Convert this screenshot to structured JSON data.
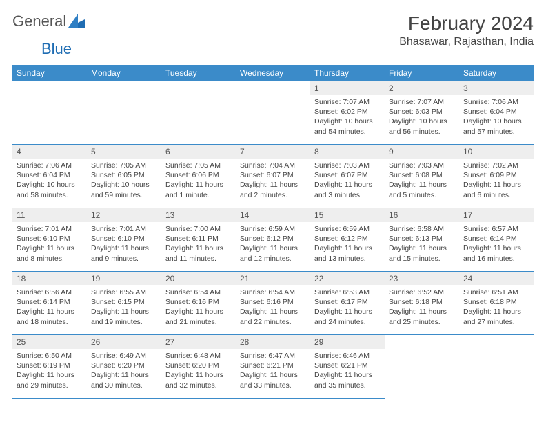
{
  "brand": {
    "text_a": "General",
    "text_b": "Blue",
    "color_a": "#666666",
    "color_b": "#1f6db3"
  },
  "title": "February 2024",
  "location": "Bhasawar, Rajasthan, India",
  "header_bg": "#3b8bc9",
  "weekdays": [
    "Sunday",
    "Monday",
    "Tuesday",
    "Wednesday",
    "Thursday",
    "Friday",
    "Saturday"
  ],
  "days": [
    {
      "n": 1,
      "sr": "7:07 AM",
      "ss": "6:02 PM",
      "dl": "10 hours and 54 minutes."
    },
    {
      "n": 2,
      "sr": "7:07 AM",
      "ss": "6:03 PM",
      "dl": "10 hours and 56 minutes."
    },
    {
      "n": 3,
      "sr": "7:06 AM",
      "ss": "6:04 PM",
      "dl": "10 hours and 57 minutes."
    },
    {
      "n": 4,
      "sr": "7:06 AM",
      "ss": "6:04 PM",
      "dl": "10 hours and 58 minutes."
    },
    {
      "n": 5,
      "sr": "7:05 AM",
      "ss": "6:05 PM",
      "dl": "10 hours and 59 minutes."
    },
    {
      "n": 6,
      "sr": "7:05 AM",
      "ss": "6:06 PM",
      "dl": "11 hours and 1 minute."
    },
    {
      "n": 7,
      "sr": "7:04 AM",
      "ss": "6:07 PM",
      "dl": "11 hours and 2 minutes."
    },
    {
      "n": 8,
      "sr": "7:03 AM",
      "ss": "6:07 PM",
      "dl": "11 hours and 3 minutes."
    },
    {
      "n": 9,
      "sr": "7:03 AM",
      "ss": "6:08 PM",
      "dl": "11 hours and 5 minutes."
    },
    {
      "n": 10,
      "sr": "7:02 AM",
      "ss": "6:09 PM",
      "dl": "11 hours and 6 minutes."
    },
    {
      "n": 11,
      "sr": "7:01 AM",
      "ss": "6:10 PM",
      "dl": "11 hours and 8 minutes."
    },
    {
      "n": 12,
      "sr": "7:01 AM",
      "ss": "6:10 PM",
      "dl": "11 hours and 9 minutes."
    },
    {
      "n": 13,
      "sr": "7:00 AM",
      "ss": "6:11 PM",
      "dl": "11 hours and 11 minutes."
    },
    {
      "n": 14,
      "sr": "6:59 AM",
      "ss": "6:12 PM",
      "dl": "11 hours and 12 minutes."
    },
    {
      "n": 15,
      "sr": "6:59 AM",
      "ss": "6:12 PM",
      "dl": "11 hours and 13 minutes."
    },
    {
      "n": 16,
      "sr": "6:58 AM",
      "ss": "6:13 PM",
      "dl": "11 hours and 15 minutes."
    },
    {
      "n": 17,
      "sr": "6:57 AM",
      "ss": "6:14 PM",
      "dl": "11 hours and 16 minutes."
    },
    {
      "n": 18,
      "sr": "6:56 AM",
      "ss": "6:14 PM",
      "dl": "11 hours and 18 minutes."
    },
    {
      "n": 19,
      "sr": "6:55 AM",
      "ss": "6:15 PM",
      "dl": "11 hours and 19 minutes."
    },
    {
      "n": 20,
      "sr": "6:54 AM",
      "ss": "6:16 PM",
      "dl": "11 hours and 21 minutes."
    },
    {
      "n": 21,
      "sr": "6:54 AM",
      "ss": "6:16 PM",
      "dl": "11 hours and 22 minutes."
    },
    {
      "n": 22,
      "sr": "6:53 AM",
      "ss": "6:17 PM",
      "dl": "11 hours and 24 minutes."
    },
    {
      "n": 23,
      "sr": "6:52 AM",
      "ss": "6:18 PM",
      "dl": "11 hours and 25 minutes."
    },
    {
      "n": 24,
      "sr": "6:51 AM",
      "ss": "6:18 PM",
      "dl": "11 hours and 27 minutes."
    },
    {
      "n": 25,
      "sr": "6:50 AM",
      "ss": "6:19 PM",
      "dl": "11 hours and 29 minutes."
    },
    {
      "n": 26,
      "sr": "6:49 AM",
      "ss": "6:20 PM",
      "dl": "11 hours and 30 minutes."
    },
    {
      "n": 27,
      "sr": "6:48 AM",
      "ss": "6:20 PM",
      "dl": "11 hours and 32 minutes."
    },
    {
      "n": 28,
      "sr": "6:47 AM",
      "ss": "6:21 PM",
      "dl": "11 hours and 33 minutes."
    },
    {
      "n": 29,
      "sr": "6:46 AM",
      "ss": "6:21 PM",
      "dl": "11 hours and 35 minutes."
    }
  ],
  "labels": {
    "sunrise": "Sunrise: ",
    "sunset": "Sunset: ",
    "daylight": "Daylight: "
  },
  "first_day_col": 4,
  "rows": 5,
  "cols": 7
}
